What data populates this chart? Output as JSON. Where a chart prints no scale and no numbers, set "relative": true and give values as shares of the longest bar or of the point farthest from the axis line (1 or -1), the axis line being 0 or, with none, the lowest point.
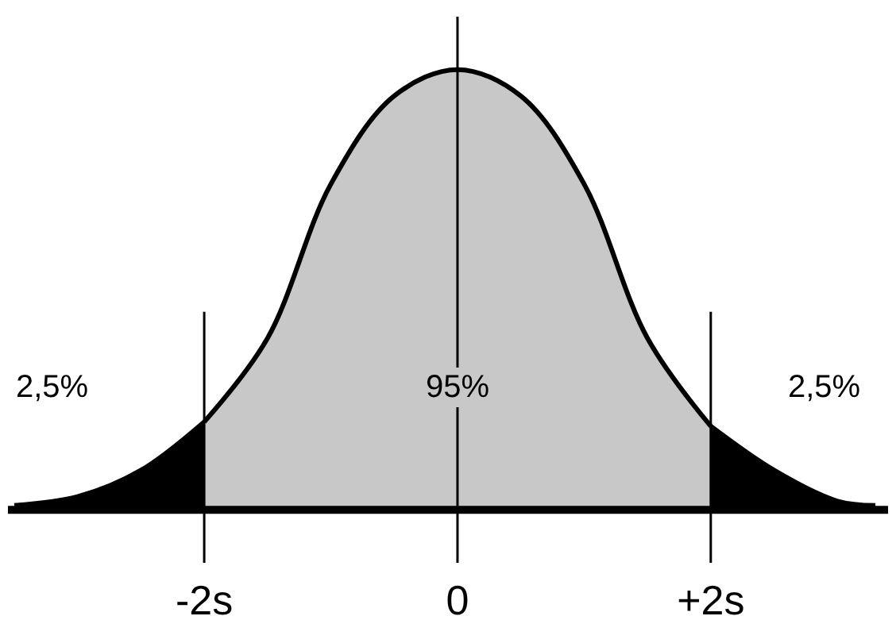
{
  "chart_data": {
    "type": "area",
    "relative": true,
    "xlim": [
      -3.55,
      3.4
    ],
    "xticks": [
      {
        "value": -2,
        "label": "-2s"
      },
      0,
      {
        "value": 2,
        "label": "+2s"
      }
    ],
    "series": [
      {
        "color": "#000000",
        "x": [
          -3.5,
          -3,
          -2.5,
          -2
        ],
        "values": [
          0.01,
          0.03,
          0.09,
          0.2
        ]
      },
      {
        "color": "#c8c8c8",
        "x": [
          -2,
          -1.5,
          -1,
          -0.5,
          0,
          0.5,
          1,
          1.5,
          2
        ],
        "values": [
          0.2,
          0.39,
          0.74,
          0.94,
          1,
          0.94,
          0.74,
          0.39,
          0.19
        ]
      },
      {
        "color": "#000000",
        "x": [
          2,
          2.5,
          3,
          3.3
        ],
        "values": [
          0.19,
          0.09,
          0.02,
          0.01
        ]
      }
    ],
    "ref_lines": [
      {
        "axis": "x",
        "value": -2,
        "color": "#000000"
      },
      {
        "axis": "x",
        "value": 0,
        "color": "#000000"
      },
      {
        "axis": "x",
        "value": 2,
        "color": "#000000"
      }
    ],
    "annotations": [
      "2,5%",
      "95%",
      "2,5%"
    ]
  }
}
